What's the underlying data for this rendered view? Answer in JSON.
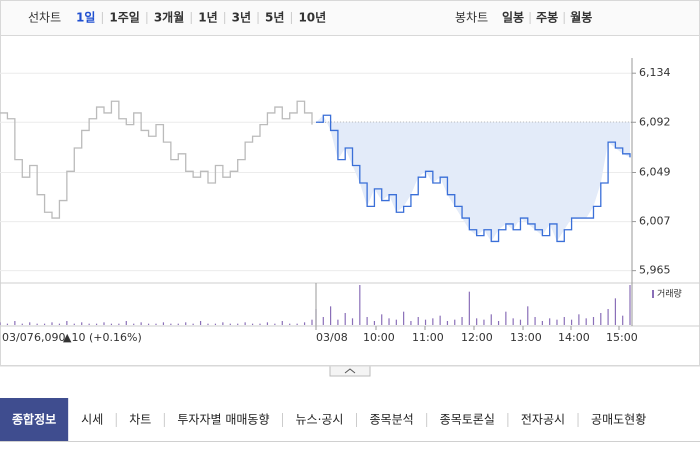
{
  "tabs": {
    "line_label": "선차트",
    "periods": [
      "1일",
      "1주일",
      "3개월",
      "1년",
      "3년",
      "5년",
      "10년"
    ],
    "selected": 0,
    "candle_label": "봉차트",
    "candles": [
      "일봉",
      "주봉",
      "월봉"
    ]
  },
  "chart_data": {
    "type": "line",
    "ylim": [
      5957,
      6147
    ],
    "yticks": [
      {
        "value": 6134,
        "label": "6,134"
      },
      {
        "value": 6092,
        "label": "6,092"
      },
      {
        "value": 6049,
        "label": "6,049"
      },
      {
        "value": 6007,
        "label": "6,007"
      },
      {
        "value": 5965,
        "label": "5,965"
      }
    ],
    "reference": 6092,
    "series": [
      {
        "name": "03/07",
        "color": "#bbbbbb",
        "values": [
          6100,
          6095,
          6060,
          6045,
          6055,
          6030,
          6015,
          6010,
          6025,
          6050,
          6070,
          6085,
          6095,
          6105,
          6100,
          6110,
          6095,
          6090,
          6100,
          6085,
          6080,
          6090,
          6075,
          6060,
          6065,
          6050,
          6045,
          6050,
          6040,
          6055,
          6045,
          6050,
          6060,
          6075,
          6080,
          6090,
          6100,
          6105,
          6095,
          6100,
          6110,
          6100,
          6090
        ]
      },
      {
        "name": "03/08",
        "color": "#3a6fd8",
        "fill": "#e3ebf9",
        "values": [
          6092,
          6098,
          6085,
          6060,
          6070,
          6055,
          6040,
          6020,
          6035,
          6025,
          6030,
          6015,
          6020,
          6030,
          6045,
          6050,
          6040,
          6045,
          6030,
          6020,
          6010,
          6000,
          5995,
          6000,
          5990,
          6000,
          6005,
          6000,
          6010,
          6005,
          6000,
          5995,
          6005,
          5990,
          6000,
          6010,
          6010,
          6010,
          6020,
          6040,
          6075,
          6070,
          6065,
          6062
        ]
      }
    ],
    "volume_label": "거래량",
    "volume_color": "#8a6fb8",
    "volume": [
      [
        2,
        1,
        3,
        1,
        2,
        1,
        1,
        2,
        1,
        3,
        1,
        2,
        1,
        1,
        2,
        1,
        1,
        3,
        1,
        2,
        1,
        1,
        2,
        1,
        1,
        2,
        1,
        3,
        1,
        1,
        2,
        1,
        1,
        2,
        1,
        1,
        2,
        1,
        3,
        1,
        1,
        2,
        4
      ],
      [
        12,
        6,
        14,
        4,
        9,
        5,
        30,
        6,
        3,
        8,
        5,
        4,
        10,
        3,
        6,
        4,
        5,
        7,
        3,
        4,
        6,
        25,
        5,
        4,
        8,
        3,
        10,
        5,
        4,
        14,
        6,
        3,
        5,
        4,
        6,
        4,
        8,
        5,
        6,
        9,
        12,
        20,
        7,
        30
      ]
    ],
    "x_labels": [
      "03/07",
      "03/08",
      "10:00",
      "11:00",
      "12:00",
      "13:00",
      "14:00",
      "15:00"
    ],
    "summary": {
      "price": "6,090",
      "change": "▲10",
      "percent": "(+0.16%)"
    }
  },
  "nav": {
    "items": [
      "종합정보",
      "시세",
      "차트",
      "투자자별 매매동향",
      "뉴스·공시",
      "종목분석",
      "종목토론실",
      "전자공시",
      "공매도현황"
    ],
    "selected": 0
  }
}
